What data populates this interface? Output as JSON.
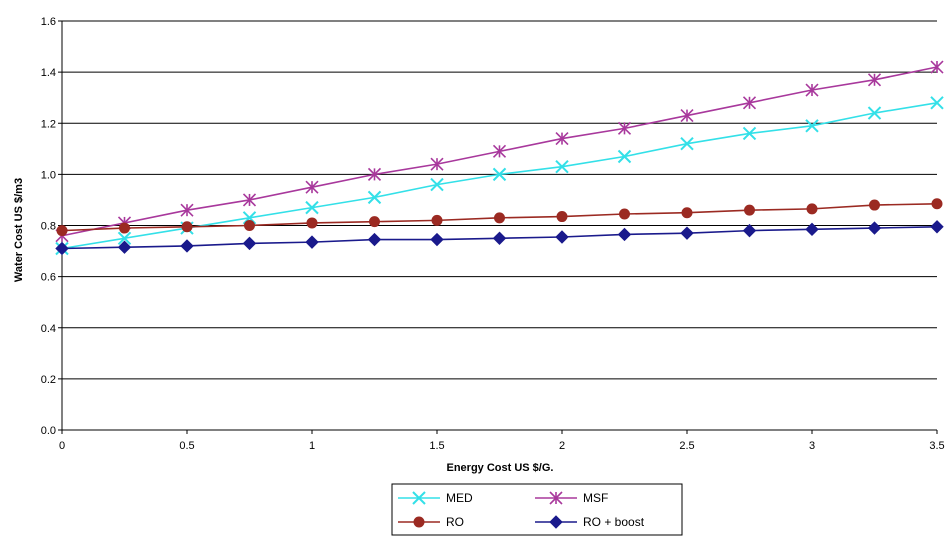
{
  "chart_data": {
    "type": "line",
    "title": "",
    "xlabel": "Energy Cost US $/G.",
    "ylabel": "Water Cost US $/m3",
    "xlim": [
      0,
      3.5
    ],
    "ylim": [
      0,
      1.6
    ],
    "x_ticks": [
      0,
      0.5,
      1,
      1.5,
      2,
      2.5,
      3,
      3.5
    ],
    "x_tick_labels": [
      "0",
      "0.5",
      "1",
      "1.5",
      "2",
      "2.5",
      "3",
      "3.5"
    ],
    "y_ticks": [
      0,
      0.2,
      0.4,
      0.6,
      0.8,
      1.0,
      1.2,
      1.4,
      1.6
    ],
    "y_tick_labels": [
      "0.0",
      "0.2",
      "0.4",
      "0.6",
      "0.8",
      "1.0",
      "1.2",
      "1.4",
      "1.6"
    ],
    "grid": "horizontal",
    "legend_position": "bottom",
    "x": [
      0,
      0.25,
      0.5,
      0.75,
      1,
      1.25,
      1.5,
      1.75,
      2,
      2.25,
      2.5,
      2.75,
      3,
      3.25,
      3.5
    ],
    "series": [
      {
        "name": "MED",
        "color": "#33e0e8",
        "marker": "x",
        "values": [
          0.71,
          0.75,
          0.79,
          0.83,
          0.87,
          0.91,
          0.96,
          1.0,
          1.03,
          1.07,
          1.12,
          1.16,
          1.19,
          1.24,
          1.28
        ]
      },
      {
        "name": "MSF",
        "color": "#a8389c",
        "marker": "asterisk",
        "values": [
          0.76,
          0.81,
          0.86,
          0.9,
          0.95,
          1.0,
          1.04,
          1.09,
          1.14,
          1.18,
          1.23,
          1.28,
          1.33,
          1.37,
          1.42
        ]
      },
      {
        "name": "RO",
        "color": "#9b2a22",
        "marker": "circle",
        "values": [
          0.78,
          0.79,
          0.795,
          0.8,
          0.81,
          0.815,
          0.82,
          0.83,
          0.835,
          0.845,
          0.85,
          0.86,
          0.865,
          0.88,
          0.885
        ]
      },
      {
        "name": "RO + boost",
        "color": "#1a1a8c",
        "marker": "diamond",
        "values": [
          0.71,
          0.715,
          0.72,
          0.73,
          0.735,
          0.745,
          0.745,
          0.75,
          0.755,
          0.765,
          0.77,
          0.78,
          0.785,
          0.79,
          0.795
        ]
      }
    ]
  }
}
